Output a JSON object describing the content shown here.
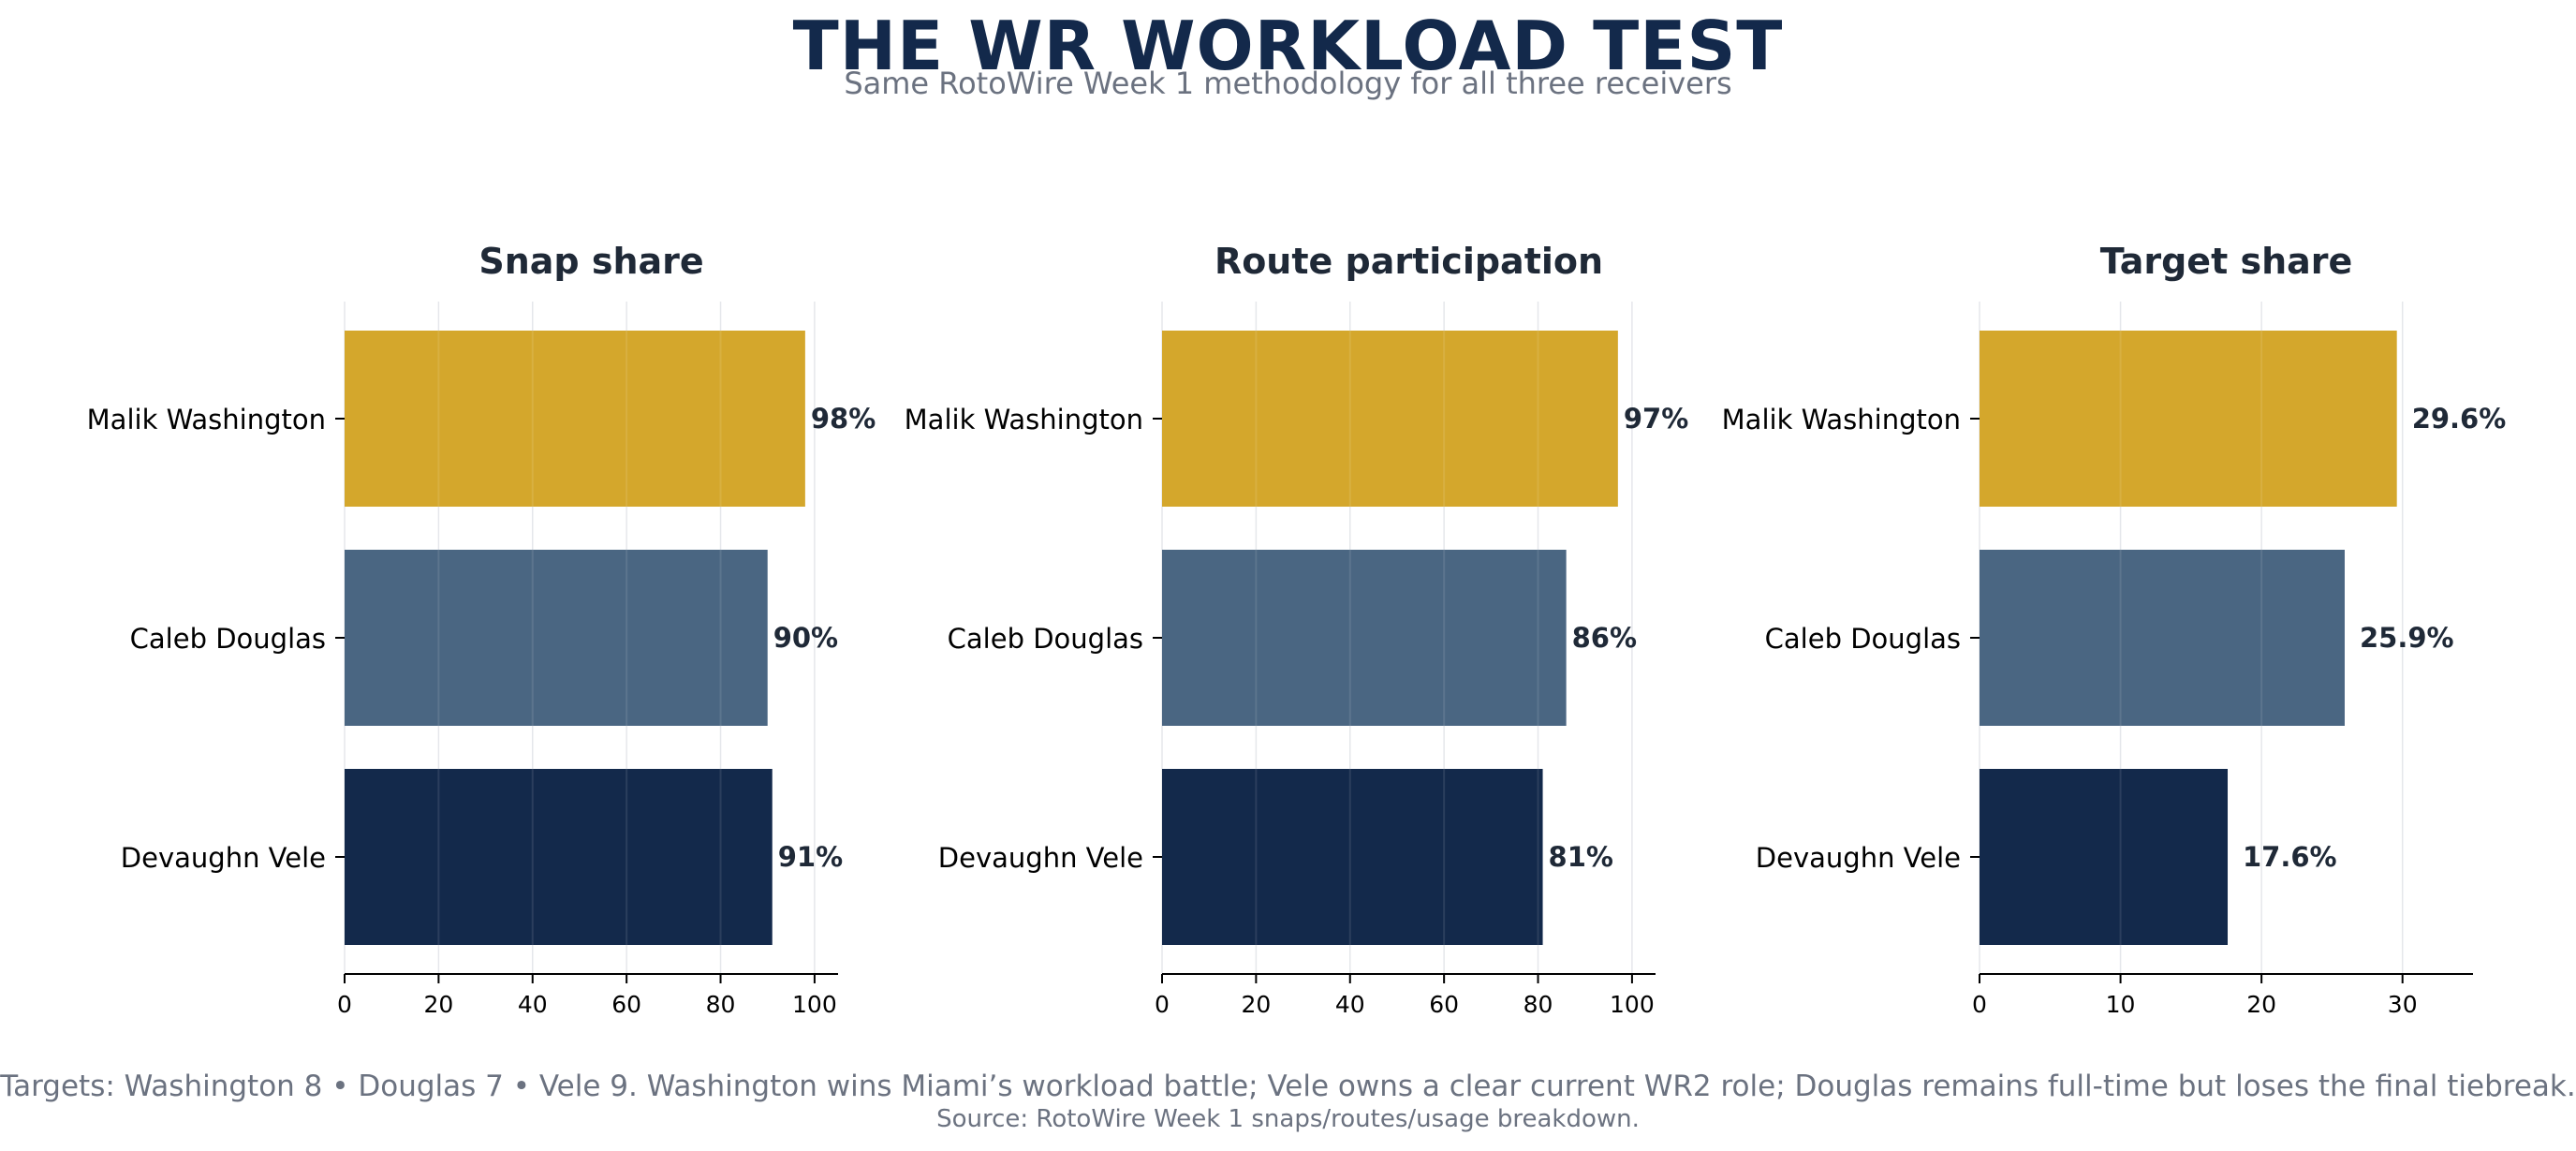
{
  "title": "THE WR WORKLOAD TEST",
  "subtitle": "Same RotoWire Week 1 methodology for all three receivers",
  "footnote": "Targets: Washington 8 • Douglas 7 • Vele 9. Washington wins Miami’s workload battle; Vele owns a clear current WR2 role; Douglas remains full-time but loses the final tiebreak.",
  "source": "Source: RotoWire Week 1 snaps/routes/usage breakdown.",
  "colors": {
    "washington": "#d4a72c",
    "douglas": "#4a6682",
    "vele": "#13294b",
    "text": "#1f2937",
    "muted": "#6b7280"
  },
  "chart_data": [
    {
      "type": "bar",
      "orientation": "horizontal",
      "title": "Snap share",
      "categories": [
        "Malik Washington",
        "Caleb Douglas",
        "Devaughn Vele"
      ],
      "values": [
        98,
        90,
        91
      ],
      "value_labels": [
        "98%",
        "90%",
        "91%"
      ],
      "xlim": [
        0,
        105
      ],
      "xticks": [
        0,
        20,
        40,
        60,
        80,
        100
      ],
      "grid": "vertical"
    },
    {
      "type": "bar",
      "orientation": "horizontal",
      "title": "Route participation",
      "categories": [
        "Malik Washington",
        "Caleb Douglas",
        "Devaughn Vele"
      ],
      "values": [
        97,
        86,
        81
      ],
      "value_labels": [
        "97%",
        "86%",
        "81%"
      ],
      "xlim": [
        0,
        105
      ],
      "xticks": [
        0,
        20,
        40,
        60,
        80,
        100
      ],
      "grid": "vertical"
    },
    {
      "type": "bar",
      "orientation": "horizontal",
      "title": "Target share",
      "categories": [
        "Malik Washington",
        "Caleb Douglas",
        "Devaughn Vele"
      ],
      "values": [
        29.6,
        25.9,
        17.6
      ],
      "value_labels": [
        "29.6%",
        "25.9%",
        "17.6%"
      ],
      "xlim": [
        0,
        35
      ],
      "xticks": [
        0,
        10,
        20,
        30
      ],
      "grid": "vertical"
    }
  ]
}
